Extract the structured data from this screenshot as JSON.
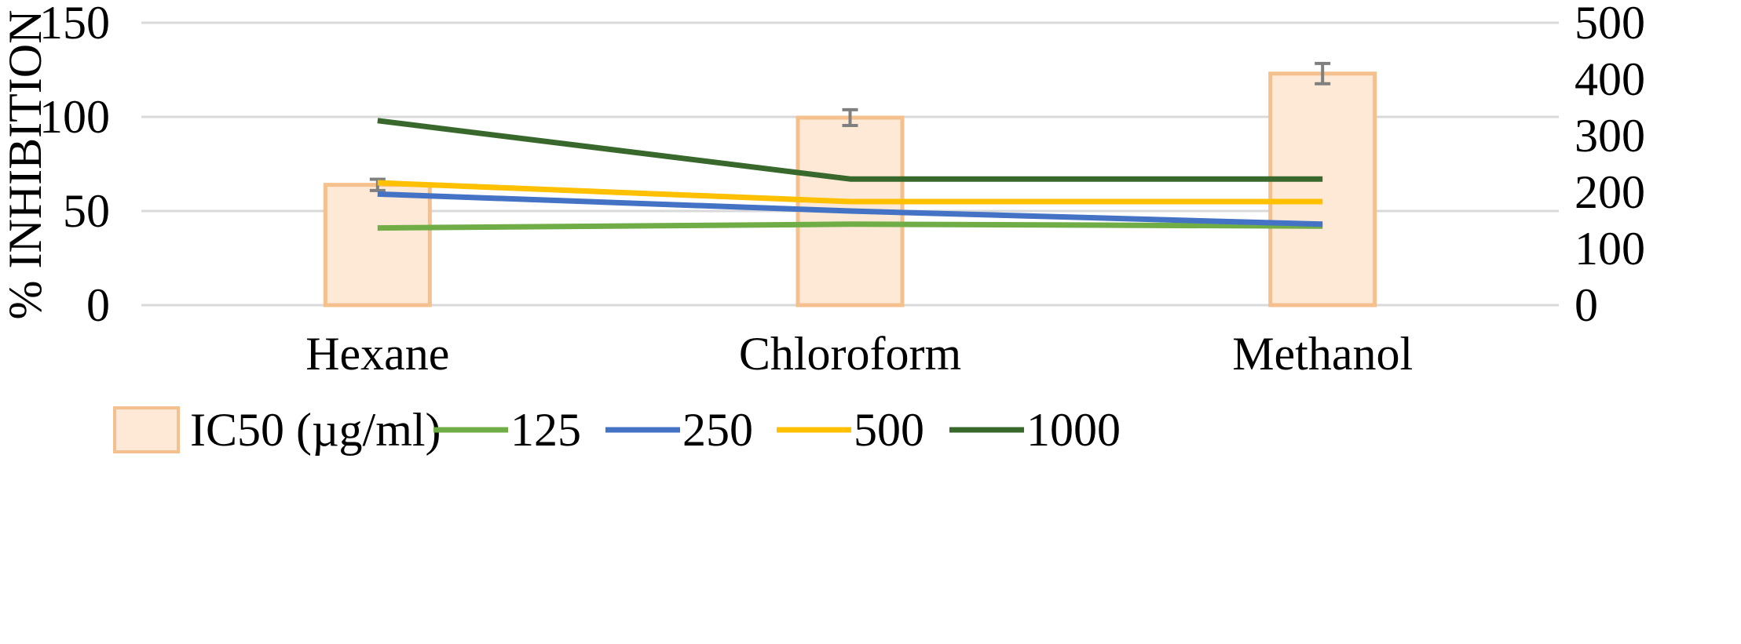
{
  "chart_data": {
    "type": "bar+line",
    "categories": [
      "Hexane",
      "Chloroform",
      "Methanol"
    ],
    "ylabel": "% INHIBITION",
    "ylim": [
      0,
      150
    ],
    "y_ticks": [
      "0",
      "50",
      "100",
      "150"
    ],
    "y2lim": [
      0,
      500
    ],
    "y2_ticks": [
      "0",
      "100",
      "200",
      "300",
      "400",
      "500"
    ],
    "grid": true,
    "legend_position": "bottom",
    "bars": {
      "name": "IC50 (µg/ml)",
      "axis": "secondary",
      "values": [
        213,
        332,
        410
      ],
      "errors": [
        10,
        14,
        18
      ],
      "fill": "#fde9d6",
      "stroke": "#f4c08d"
    },
    "series": [
      {
        "name": "125",
        "axis": "primary",
        "values": [
          41,
          43,
          42
        ],
        "color": "#70ad47"
      },
      {
        "name": "250",
        "axis": "primary",
        "values": [
          59,
          50,
          43
        ],
        "color": "#4472c4"
      },
      {
        "name": "500",
        "axis": "primary",
        "values": [
          65,
          55,
          55
        ],
        "color": "#ffc000"
      },
      {
        "name": "1000",
        "axis": "primary",
        "values": [
          98,
          67,
          67
        ],
        "color": "#38682c"
      }
    ]
  }
}
